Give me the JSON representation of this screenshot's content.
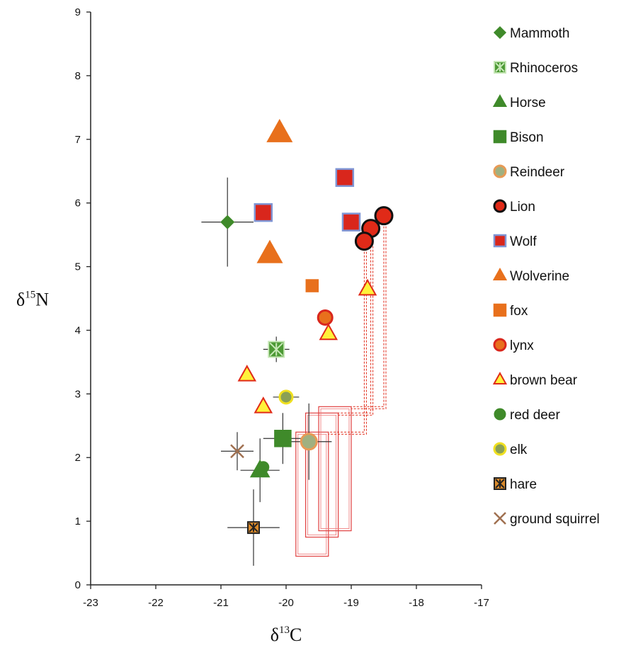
{
  "chart_data": {
    "type": "scatter",
    "title": "",
    "xlabel": {
      "base": "δ",
      "sup": "13",
      "tail": "C"
    },
    "ylabel": {
      "base": "δ",
      "sup": "15",
      "tail": "N"
    },
    "xlim": [
      -23,
      -17
    ],
    "ylim": [
      0,
      9
    ],
    "xticks": [
      -23,
      -22,
      -21,
      -20,
      -19,
      -18,
      -17
    ],
    "yticks": [
      0,
      1,
      2,
      3,
      4,
      5,
      6,
      7,
      8,
      9
    ],
    "grid": false,
    "legend_position": "right",
    "series": [
      {
        "name": "Mammoth",
        "marker": "diamond",
        "fill": "#3f8a2a",
        "stroke": "#3f8a2a",
        "size": 9,
        "points": [
          {
            "x": -20.9,
            "y": 5.7,
            "xerr": 0.4,
            "yerr": 0.7
          }
        ]
      },
      {
        "name": "Rhinoceros",
        "marker": "square-x",
        "fill": "#4d9a35",
        "stroke": "#c8e8b8",
        "size": 11,
        "points": [
          {
            "x": -20.15,
            "y": 3.7,
            "xerr": 0.2,
            "yerr": 0.2
          }
        ]
      },
      {
        "name": "Horse",
        "marker": "triangle",
        "fill": "#3f8a2a",
        "stroke": "#3f8a2a",
        "size": 12,
        "points": [
          {
            "x": -20.4,
            "y": 1.8,
            "xerr": 0.3,
            "yerr": 0.5
          }
        ]
      },
      {
        "name": "Bison",
        "marker": "square",
        "fill": "#3f8a2a",
        "stroke": "#3f8a2a",
        "size": 11,
        "points": [
          {
            "x": -20.05,
            "y": 2.3,
            "xerr": 0.3,
            "yerr": 0.4
          }
        ]
      },
      {
        "name": "Reindeer",
        "marker": "circle",
        "fill": "#a0b080",
        "stroke": "#e79a55",
        "size": 11,
        "points": [
          {
            "x": -19.65,
            "y": 2.25,
            "xerr": 0.35,
            "yerr": 0.6
          }
        ]
      },
      {
        "name": "Lion",
        "marker": "circle",
        "fill": "#e02a18",
        "stroke": "#111111",
        "size": 12,
        "points": [
          {
            "x": -18.5,
            "y": 5.8
          },
          {
            "x": -18.7,
            "y": 5.6
          },
          {
            "x": -18.8,
            "y": 5.4
          }
        ]
      },
      {
        "name": "Wolf",
        "marker": "square",
        "fill": "#d9261c",
        "stroke": "#7f95d4",
        "size": 12,
        "points": [
          {
            "x": -20.35,
            "y": 5.85
          },
          {
            "x": -19.1,
            "y": 6.4
          },
          {
            "x": -19.0,
            "y": 5.7
          }
        ]
      },
      {
        "name": "Wolverine",
        "marker": "triangle",
        "fill": "#e8701c",
        "stroke": "#e8701c",
        "size": 16,
        "points": [
          {
            "x": -20.1,
            "y": 7.1
          },
          {
            "x": -20.25,
            "y": 5.2
          }
        ]
      },
      {
        "name": "fox",
        "marker": "square",
        "fill": "#e8701c",
        "stroke": "#e8701c",
        "size": 8,
        "points": [
          {
            "x": -19.6,
            "y": 4.7
          }
        ]
      },
      {
        "name": "lynx",
        "marker": "circle",
        "fill": "#e8701c",
        "stroke": "#d9261c",
        "size": 10,
        "points": [
          {
            "x": -19.4,
            "y": 4.2
          }
        ]
      },
      {
        "name": "brown bear",
        "marker": "triangle",
        "fill": "#fff23a",
        "stroke": "#e02a18",
        "size": 11,
        "points": [
          {
            "x": -18.75,
            "y": 4.65
          },
          {
            "x": -19.35,
            "y": 3.95
          },
          {
            "x": -20.6,
            "y": 3.3
          },
          {
            "x": -20.35,
            "y": 2.8
          }
        ]
      },
      {
        "name": "red deer",
        "marker": "circle",
        "fill": "#3f8a2a",
        "stroke": "#3f8a2a",
        "size": 7,
        "points": [
          {
            "x": -20.35,
            "y": 1.85
          }
        ]
      },
      {
        "name": "elk",
        "marker": "circle",
        "fill": "#8aa055",
        "stroke": "#f0e020",
        "size": 9,
        "points": [
          {
            "x": -20.0,
            "y": 2.95,
            "xerr": 0.2
          }
        ]
      },
      {
        "name": "hare",
        "marker": "square-x",
        "fill": "#d9892a",
        "stroke": "#222222",
        "size": 8,
        "points": [
          {
            "x": -20.5,
            "y": 0.9,
            "xerr": 0.4,
            "yerr": 0.6
          }
        ]
      },
      {
        "name": "ground squirrel",
        "marker": "x",
        "fill": "none",
        "stroke": "#a07050",
        "size": 9,
        "points": [
          {
            "x": -20.75,
            "y": 2.1,
            "xerr": 0.25,
            "yerr": 0.3
          }
        ]
      }
    ],
    "boxes": [
      {
        "x0": -19.85,
        "x1": -19.35,
        "y0": 0.45,
        "y1": 2.4
      },
      {
        "x0": -19.7,
        "x1": -19.2,
        "y0": 0.75,
        "y1": 2.7
      },
      {
        "x0": -19.5,
        "x1": -19.0,
        "y0": 0.85,
        "y1": 2.8
      }
    ],
    "connectors": [
      {
        "from": [
          -18.5,
          5.8
        ],
        "to": [
          -19.0,
          2.8
        ]
      },
      {
        "from": [
          -18.7,
          5.6
        ],
        "to": [
          -19.2,
          2.7
        ]
      },
      {
        "from": [
          -18.8,
          5.4
        ],
        "to": [
          -19.35,
          2.4
        ]
      }
    ]
  }
}
